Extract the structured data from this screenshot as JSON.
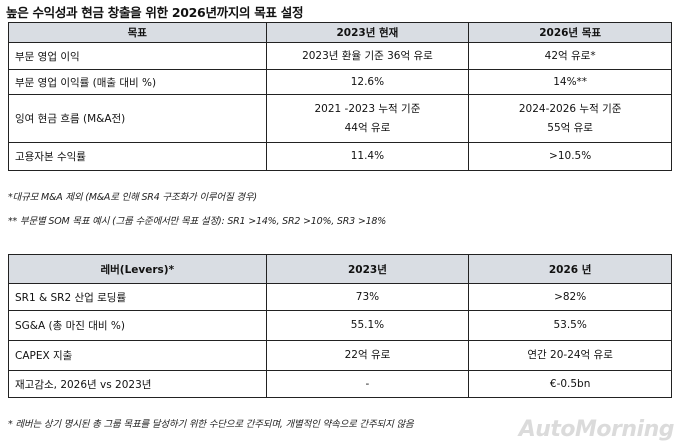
{
  "title": "높은 수익성과 현금 창출을 위한 2026년까지의 목표 설정",
  "table1": {
    "headers": [
      "목표",
      "2023년 현재",
      "2026년 목표"
    ],
    "rows": [
      {
        "label": "부문 영업 이익",
        "current": [
          "2023년 환율 기준 36억 유로"
        ],
        "target": [
          "42억 유로*"
        ]
      },
      {
        "label": "부문 영업 이익률 (매출 대비 %)",
        "current": [
          "12.6%"
        ],
        "target": [
          "14%**"
        ]
      },
      {
        "label": "잉여 현금 흐름 (M&A전)",
        "current": [
          "2021 -2023 누적 기준",
          "44억 유로"
        ],
        "target": [
          "2024-2026 누적 기준",
          "55억 유로"
        ]
      },
      {
        "label": "고용자본 수익률",
        "current": [
          "11.4%"
        ],
        "target": [
          ">10.5%"
        ]
      }
    ]
  },
  "notes": {
    "n1": "*대규모 M&A 제외 (M&A로 인해 SR4 구조화가 이루어질 경우)",
    "n2": "** 부문별 SOM 목표 예시 (그룹 수준에서만 목표 설정): SR1 >14%, SR2 >10%, SR3 >18%",
    "n3": "* 레버는 상기 명시된 총 그룹 목표를 달성하기 위한 수단으로 간주되며, 개별적인 약속으로 간주되지 않음"
  },
  "table2": {
    "headers": [
      "레버(Levers)*",
      "2023년",
      "2026 년"
    ],
    "rows": [
      {
        "label": "SR1 & SR2 산업 로딩률",
        "v2023": "73%",
        "v2026": ">82%"
      },
      {
        "label": "SG&A (총 마진 대비 %)",
        "v2023": "55.1%",
        "v2026": "53.5%"
      },
      {
        "label": "CAPEX 지출",
        "v2023": "22억 유로",
        "v2026": "연간 20-24억 유로"
      },
      {
        "label": "재고감소, 2026년 vs 2023년",
        "v2023": "-",
        "v2026": "€-0.5bn"
      }
    ]
  },
  "watermark": "AutoMorning"
}
